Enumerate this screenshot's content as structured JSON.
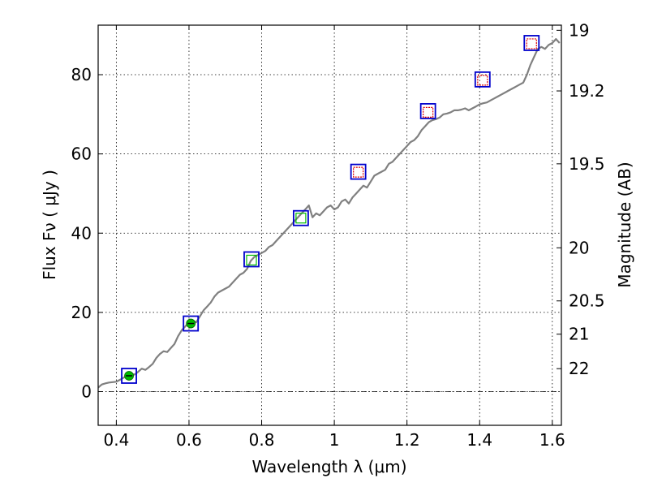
{
  "chart_data": {
    "type": "scatter",
    "xlabel": "Wavelength  λ (μm)",
    "ylabel": "Flux  Fν  ( μJy )",
    "y2label": "Magnitude (AB)",
    "xlim": [
      0.35,
      1.625
    ],
    "ylim": [
      -8.5,
      92.5
    ],
    "x_ticks": [
      0.4,
      0.6,
      0.8,
      1.0,
      1.2,
      1.4,
      1.6
    ],
    "x_tick_labels": [
      "0.4",
      "0.6",
      "0.8",
      "1",
      "1.2",
      "1.4",
      "1.6"
    ],
    "y_ticks": [
      0,
      20,
      40,
      60,
      80
    ],
    "y_tick_labels": [
      "0",
      "20",
      "40",
      "60",
      "80"
    ],
    "y2_ticks": [
      {
        "label": "19",
        "flux": 91.2
      },
      {
        "label": "19.2",
        "flux": 75.9
      },
      {
        "label": "19.5",
        "flux": 57.5
      },
      {
        "label": "20",
        "flux": 36.3
      },
      {
        "label": "20.5",
        "flux": 22.9
      },
      {
        "label": "21",
        "flux": 14.5
      },
      {
        "label": "22",
        "flux": 5.8
      }
    ],
    "grid": true,
    "zero_line": true,
    "colors": {
      "spectrum": "#808080",
      "model_box": "#0000cc",
      "optical_phot": "#00bb00",
      "nir_phot": "#dd0000"
    },
    "series": [
      {
        "kind": "spectrum",
        "x": [
          0.35,
          0.36,
          0.37,
          0.38,
          0.39,
          0.4,
          0.41,
          0.42,
          0.43,
          0.44,
          0.45,
          0.46,
          0.47,
          0.48,
          0.49,
          0.5,
          0.51,
          0.52,
          0.53,
          0.54,
          0.55,
          0.56,
          0.57,
          0.58,
          0.59,
          0.6,
          0.61,
          0.62,
          0.63,
          0.64,
          0.65,
          0.66,
          0.67,
          0.68,
          0.69,
          0.7,
          0.71,
          0.72,
          0.73,
          0.74,
          0.75,
          0.76,
          0.77,
          0.78,
          0.79,
          0.8,
          0.81,
          0.82,
          0.83,
          0.84,
          0.85,
          0.86,
          0.87,
          0.88,
          0.89,
          0.9,
          0.91,
          0.92,
          0.93,
          0.94,
          0.95,
          0.96,
          0.97,
          0.98,
          0.99,
          1.0,
          1.01,
          1.02,
          1.03,
          1.04,
          1.05,
          1.06,
          1.07,
          1.08,
          1.09,
          1.1,
          1.11,
          1.12,
          1.13,
          1.14,
          1.15,
          1.16,
          1.17,
          1.18,
          1.19,
          1.2,
          1.21,
          1.22,
          1.23,
          1.24,
          1.25,
          1.26,
          1.27,
          1.28,
          1.29,
          1.3,
          1.31,
          1.32,
          1.33,
          1.34,
          1.35,
          1.36,
          1.37,
          1.38,
          1.39,
          1.4,
          1.41,
          1.42,
          1.43,
          1.44,
          1.45,
          1.46,
          1.47,
          1.48,
          1.49,
          1.5,
          1.51,
          1.52,
          1.53,
          1.54,
          1.55,
          1.56,
          1.57,
          1.58,
          1.59,
          1.6,
          1.61,
          1.62
        ],
        "y": [
          1.0,
          1.8,
          2.1,
          2.3,
          2.4,
          2.5,
          3.0,
          3.5,
          4.0,
          4.5,
          4.3,
          5.0,
          5.8,
          5.5,
          6.2,
          7.0,
          8.5,
          9.5,
          10.2,
          10.0,
          11.0,
          12.0,
          14.0,
          15.5,
          16.5,
          17.5,
          18.0,
          17.5,
          19.0,
          20.5,
          21.5,
          22.5,
          24.0,
          25.0,
          25.5,
          26.0,
          26.5,
          27.5,
          28.5,
          29.5,
          30.0,
          31.0,
          33.0,
          34.0,
          34.5,
          35.0,
          35.5,
          36.5,
          37.0,
          38.0,
          39.0,
          40.0,
          41.0,
          42.0,
          43.0,
          44.0,
          45.0,
          46.0,
          47.0,
          44.0,
          45.0,
          44.5,
          45.5,
          46.5,
          47.0,
          46.0,
          46.5,
          48.0,
          48.5,
          47.5,
          49.0,
          50.0,
          51.0,
          52.0,
          51.5,
          53.0,
          54.5,
          55.0,
          55.5,
          56.0,
          57.5,
          58.0,
          59.0,
          60.0,
          61.0,
          62.0,
          63.0,
          63.5,
          64.5,
          66.0,
          67.0,
          68.0,
          68.5,
          68.8,
          69.2,
          70.0,
          70.2,
          70.5,
          71.0,
          71.0,
          71.2,
          71.5,
          71.0,
          71.5,
          72.0,
          72.5,
          72.8,
          73.0,
          73.5,
          74.0,
          74.5,
          75.0,
          75.5,
          76.0,
          76.5,
          77.0,
          77.5,
          78.0,
          80.0,
          82.5,
          84.5,
          86.5,
          87.0,
          86.5,
          87.5,
          88.0,
          89.0,
          88.0
        ]
      },
      {
        "kind": "model_photometry",
        "x": [
          0.435,
          0.605,
          0.772,
          0.908,
          1.066,
          1.258,
          1.408,
          1.543
        ],
        "y": [
          4.0,
          17.2,
          33.4,
          43.8,
          55.5,
          70.8,
          78.8,
          88.0
        ]
      },
      {
        "kind": "optical_photometry",
        "x": [
          0.435,
          0.605,
          0.772,
          0.908
        ],
        "y": [
          4.0,
          17.2,
          33.2,
          43.8
        ],
        "filled": [
          true,
          true,
          false,
          false
        ]
      },
      {
        "kind": "nir_photometry",
        "x": [
          1.066,
          1.258,
          1.408,
          1.543
        ],
        "y": [
          55.4,
          70.5,
          78.6,
          87.8
        ]
      }
    ]
  }
}
